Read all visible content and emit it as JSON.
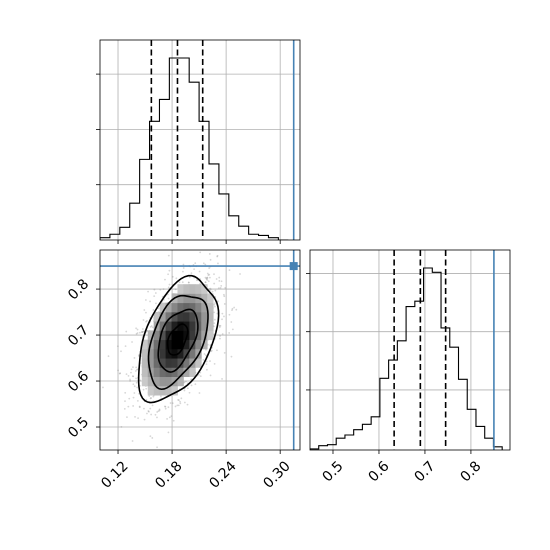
{
  "chart_data": {
    "type": "corner",
    "parameters": [
      "",
      ""
    ],
    "truths": [
      0.315,
      0.85
    ],
    "truth_color": "#4682b4",
    "x_param": {
      "range": [
        0.1,
        0.322
      ],
      "ticks": [
        "0.12",
        "0.18",
        "0.24",
        "0.30"
      ],
      "tick_values": [
        0.12,
        0.18,
        0.24,
        0.3
      ],
      "quantiles": [
        0.157,
        0.186,
        0.214
      ],
      "histogram": {
        "bin_edges": [
          0.1,
          0.111,
          0.122,
          0.133,
          0.144,
          0.155,
          0.166,
          0.177,
          0.188,
          0.199,
          0.21,
          0.221,
          0.232,
          0.243,
          0.254,
          0.265,
          0.276,
          0.287,
          0.298,
          0.309
        ],
        "counts": [
          2,
          5,
          11,
          32,
          70,
          103,
          122,
          158,
          158,
          137,
          103,
          66,
          40,
          21,
          12,
          5,
          4,
          2,
          0
        ]
      }
    },
    "y_param": {
      "range": [
        0.45,
        0.885
      ],
      "ticks": [
        "0.5",
        "0.6",
        "0.7",
        "0.8"
      ],
      "tick_values": [
        0.5,
        0.6,
        0.7,
        0.8
      ],
      "quantiles": [
        0.633,
        0.69,
        0.745
      ],
      "histogram": {
        "bin_edges": [
          0.45,
          0.469,
          0.488,
          0.507,
          0.526,
          0.545,
          0.564,
          0.583,
          0.602,
          0.621,
          0.64,
          0.659,
          0.678,
          0.697,
          0.716,
          0.735,
          0.754,
          0.773,
          0.792,
          0.811,
          0.83,
          0.849,
          0.868
        ],
        "counts": [
          1,
          4,
          5,
          11,
          14,
          19,
          24,
          31,
          67,
          84,
          102,
          134,
          139,
          170,
          166,
          114,
          96,
          66,
          38,
          22,
          11,
          3
        ]
      }
    },
    "joint": {
      "mean": [
        0.186,
        0.69
      ],
      "contour_levels_sigma": [
        0.5,
        1.0,
        1.5,
        2.0
      ],
      "sd": [
        0.022,
        0.067
      ],
      "correlation": 0.45
    },
    "grid": true
  }
}
